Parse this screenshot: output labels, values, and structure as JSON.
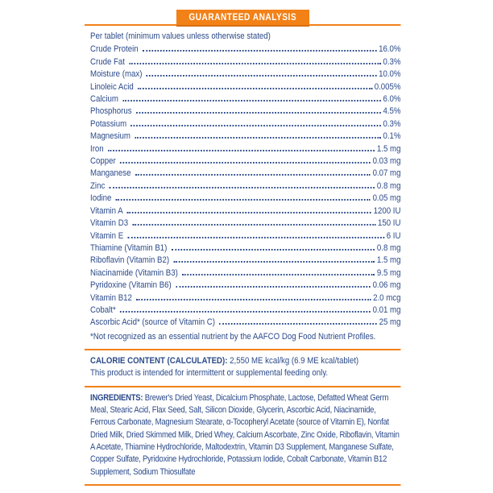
{
  "banner": {
    "title": "GUARANTEED ANALYSIS"
  },
  "analysis": {
    "intro": "Per tablet (minimum values unless otherwise stated)",
    "rows": [
      {
        "label": "Crude Protein",
        "value": "16.0%"
      },
      {
        "label": "Crude Fat",
        "value": "0.3%"
      },
      {
        "label": "Moisture (max)",
        "value": "10.0%"
      },
      {
        "label": "Linoleic Acid",
        "value": "0.005%"
      },
      {
        "label": "Calcium",
        "value": "6.0%"
      },
      {
        "label": "Phosphorus",
        "value": "4.5%"
      },
      {
        "label": "Potassium",
        "value": "0.3%"
      },
      {
        "label": "Magnesium",
        "value": "0.1%"
      },
      {
        "label": "Iron",
        "value": "1.5 mg"
      },
      {
        "label": "Copper",
        "value": "0.03 mg"
      },
      {
        "label": "Manganese",
        "value": "0.07 mg"
      },
      {
        "label": "Zinc",
        "value": "0.8 mg"
      },
      {
        "label": "Iodine",
        "value": "0.05 mg"
      },
      {
        "label": "Vitamin A",
        "value": "1200 IU"
      },
      {
        "label": "Vitamin D3",
        "value": "150 IU"
      },
      {
        "label": "Vitamin E",
        "value": "6 IU"
      },
      {
        "label": "Thiamine (Vitamin B1)",
        "value": "0.8 mg"
      },
      {
        "label": "Riboflavin (Vitamin B2)",
        "value": "1.5 mg"
      },
      {
        "label": "Niacinamide (Vitamin B3)",
        "value": "9.5 mg"
      },
      {
        "label": "Pyridoxine (Vitamin B6)",
        "value": "0.06 mg"
      },
      {
        "label": "Vitamin B12",
        "value": "2.0 mcg"
      },
      {
        "label": "Cobalt*",
        "value": "0.01 mg"
      },
      {
        "label": "Ascorbic Acid* (source of Vitamin C)",
        "value": "25 mg"
      }
    ],
    "footnote": "*Not recognized as an essential nutrient by the AAFCO Dog Food Nutrient Profiles."
  },
  "calorie": {
    "label": "CALORIE CONTENT (CALCULATED):",
    "value": "2,550 ME kcal/kg (6.9 ME kcal/tablet)",
    "note": "This product is intended for intermittent or supplemental feeding only."
  },
  "ingredients": {
    "label": "INGREDIENTS:",
    "text": "Brewer's Dried Yeast, Dicalcium Phosphate, Lactose, Defatted Wheat Germ Meal, Stearic Acid, Flax Seed, Salt, Silicon Dioxide, Glycerin, Ascorbic Acid, Niacinamide, Ferrous Carbonate, Magnesium Stearate, α-Tocopheryl Acetate (source of Vitamin E), Nonfat Dried Milk, Dried Skimmed Milk, Dried Whey, Calcium Ascorbate, Zinc Oxide, Riboflavin, Vitamin A Acetate, Thiamine Hydrochloride, Maltodextrin, Vitamin D3 Supplement, Manganese Sulfate, Copper Sulfate, Pyridoxine Hydrochloride, Potassium Iodide, Cobalt Carbonate, Vitamin B12 Supplement, Sodium Thiosulfate"
  },
  "colors": {
    "accent_orange": "#F28118",
    "text_navy": "#2B4A8A"
  }
}
